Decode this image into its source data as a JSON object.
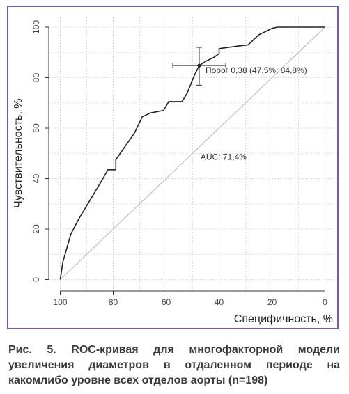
{
  "chart_data": {
    "type": "line",
    "xlabel": "Специфичность, %",
    "ylabel": "Чувствительность, %",
    "xlim": [
      100,
      0
    ],
    "ylim": [
      0,
      100
    ],
    "x_ticks": [
      100,
      80,
      60,
      40,
      20,
      0
    ],
    "y_ticks": [
      0,
      20,
      40,
      60,
      80,
      100
    ],
    "x_tick_labels": [
      "100",
      "80",
      "60",
      "40",
      "20",
      "0"
    ],
    "y_tick_labels": [
      "0",
      "20",
      "40",
      "60",
      "80",
      "100"
    ],
    "grid": true,
    "diagonal": true,
    "series": [
      {
        "x": [
          100,
          99,
          96,
          93,
          89,
          85,
          82,
          79,
          79,
          76,
          72,
          69,
          66,
          61,
          59,
          54,
          52,
          49.5,
          47.5,
          45,
          42,
          40,
          40,
          33,
          29,
          27,
          25,
          23,
          21,
          20,
          18,
          15,
          10,
          5,
          0
        ],
        "y": [
          0,
          7,
          18,
          24,
          31,
          38,
          43.5,
          43.5,
          47.5,
          52,
          58,
          64.5,
          66,
          67,
          70.5,
          70.5,
          74,
          80.5,
          84.8,
          86.5,
          88,
          89.5,
          91.5,
          92.5,
          93,
          95,
          97,
          98,
          99,
          99.5,
          100,
          100,
          100,
          100,
          100
        ]
      }
    ],
    "threshold_point": {
      "x": 47.5,
      "y": 84.8,
      "x_range": [
        37.5,
        57.5
      ],
      "y_range": [
        77,
        92
      ]
    },
    "annotations": {
      "threshold_label": "Порог 0,38 (47,5%; 84,8%)",
      "auc_label": "AUC: 71,4%"
    }
  },
  "caption": "Рис. 5. ROC-кривая для многофакторной модели увеличения диаметров в отдаленном периоде на какомлибо уровне всех отделов аорты (n=198)",
  "colors": {
    "frame": "#7b5a9e",
    "curve": "#222222",
    "diagonal": "#b5b5b5",
    "grid": "#d0d0d0"
  }
}
